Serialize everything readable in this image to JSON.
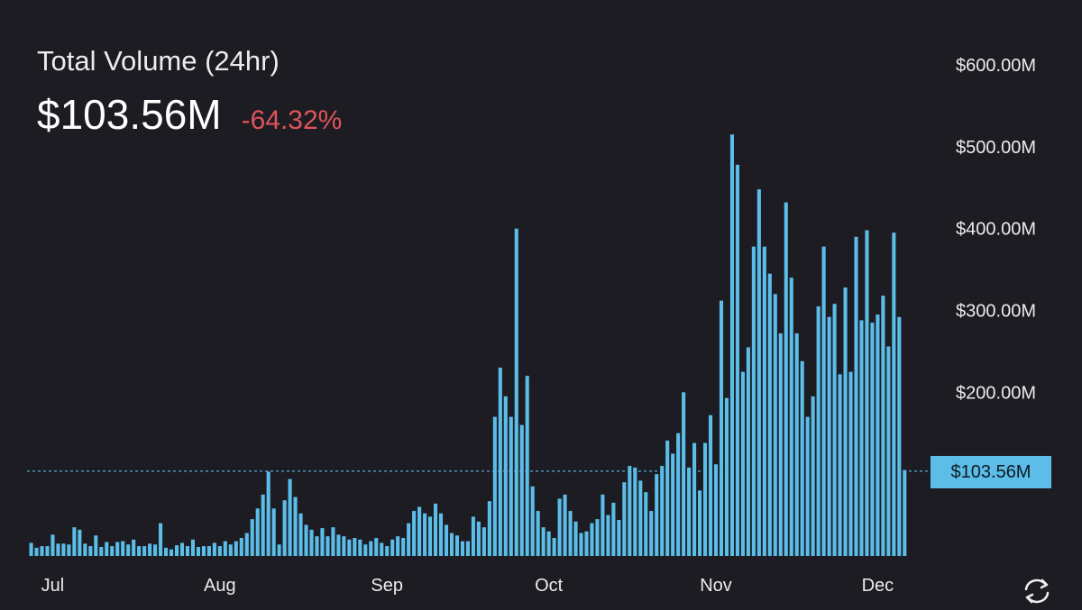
{
  "header": {
    "title": "Total Volume (24hr)",
    "value": "$103.56M",
    "change": "-64.32%"
  },
  "colors": {
    "background": "#1c1c22",
    "bar": "#5bbde8",
    "negative": "#e0535b"
  },
  "icons": {
    "refresh": "refresh-icon"
  },
  "chart_data": {
    "type": "bar",
    "ylim": [
      0,
      600
    ],
    "y_unit": "$M",
    "y_ticks": [
      {
        "value": 600,
        "label": "$600.00M"
      },
      {
        "value": 500,
        "label": "$500.00M"
      },
      {
        "value": 400,
        "label": "$400.00M"
      },
      {
        "value": 300,
        "label": "$300.00M"
      },
      {
        "value": 200,
        "label": "$200.00M"
      }
    ],
    "x_ticks": [
      {
        "label": "Jul",
        "index": 4
      },
      {
        "label": "Aug",
        "index": 35
      },
      {
        "label": "Sep",
        "index": 66
      },
      {
        "label": "Oct",
        "index": 96
      },
      {
        "label": "Nov",
        "index": 127
      },
      {
        "label": "Dec",
        "index": 157
      }
    ],
    "current": {
      "value": 103.56,
      "label": "$103.56M"
    },
    "grid": false,
    "legend": "none",
    "values": [
      16,
      10,
      12,
      12,
      26,
      15,
      15,
      14,
      35,
      32,
      15,
      12,
      25,
      11,
      17,
      12,
      17,
      18,
      14,
      20,
      12,
      12,
      15,
      14,
      40,
      10,
      8,
      13,
      16,
      12,
      20,
      11,
      12,
      12,
      16,
      12,
      18,
      14,
      18,
      22,
      28,
      45,
      58,
      75,
      103,
      58,
      14,
      68,
      94,
      72,
      52,
      38,
      32,
      24,
      34,
      24,
      35,
      26,
      24,
      20,
      22,
      20,
      14,
      18,
      22,
      16,
      12,
      20,
      24,
      22,
      40,
      55,
      60,
      52,
      48,
      64,
      52,
      38,
      28,
      25,
      18,
      18,
      48,
      42,
      35,
      67,
      170,
      230,
      195,
      170,
      400,
      160,
      220,
      85,
      55,
      35,
      30,
      22,
      70,
      75,
      55,
      42,
      28,
      30,
      40,
      45,
      75,
      50,
      65,
      44,
      90,
      110,
      108,
      92,
      78,
      55,
      100,
      110,
      141,
      125,
      150,
      200,
      108,
      138,
      80,
      138,
      172,
      112,
      312,
      193,
      515,
      478,
      225,
      255,
      378,
      448,
      378,
      345,
      320,
      272,
      432,
      340,
      272,
      238,
      170,
      195,
      305,
      378,
      292,
      308,
      222,
      328,
      225,
      390,
      288,
      398,
      285,
      295,
      318,
      256,
      395,
      292,
      105
    ]
  }
}
